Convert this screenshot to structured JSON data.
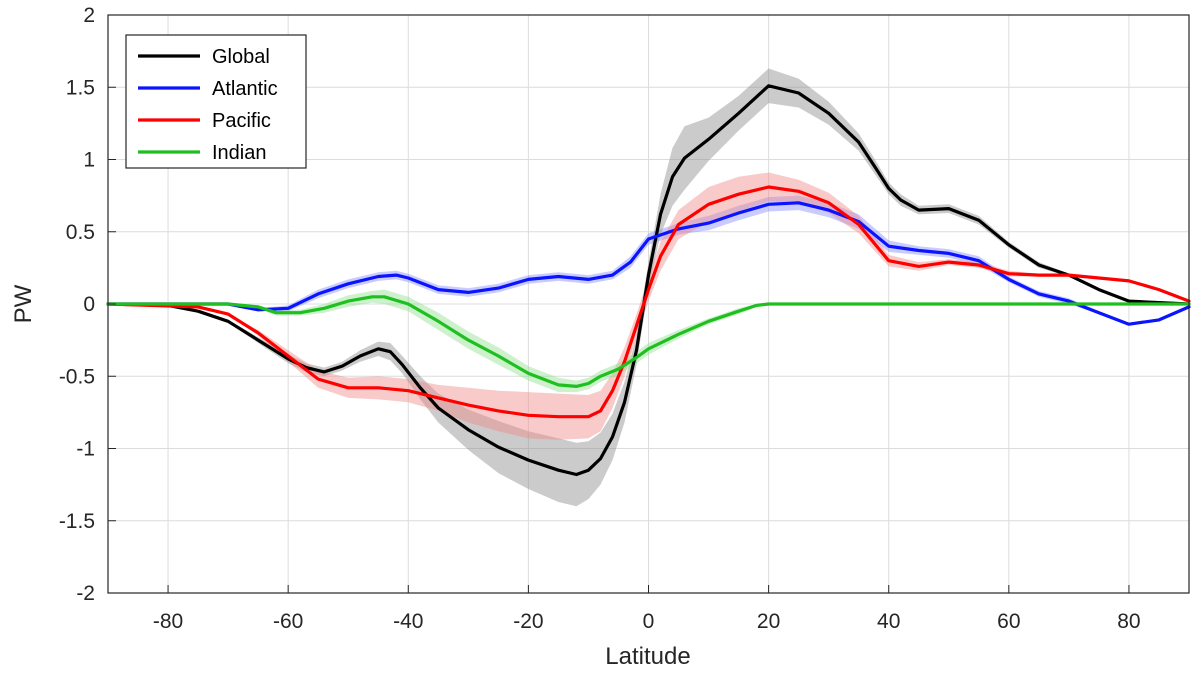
{
  "chart_data": {
    "type": "line",
    "xlabel": "Latitude",
    "ylabel": "PW",
    "xlim": [
      -90,
      90
    ],
    "ylim": [
      -2,
      2
    ],
    "xticks": [
      -80,
      -60,
      -40,
      -20,
      0,
      20,
      40,
      60,
      80
    ],
    "yticks": [
      -2,
      -1.5,
      -1,
      -0.5,
      0,
      0.5,
      1,
      1.5,
      2
    ],
    "xtick_labels": [
      "-80",
      "-60",
      "-40",
      "-20",
      "0",
      "20",
      "40",
      "60",
      "80"
    ],
    "ytick_labels": [
      "-2",
      "-1.5",
      "-1",
      "-0.5",
      "0",
      "0.5",
      "1",
      "1.5",
      "2"
    ],
    "grid": true,
    "legend_position": "top-left",
    "series": [
      {
        "name": "Global",
        "color": "#000000",
        "band_color": "#8c8c8c",
        "x": [
          -90,
          -80,
          -75,
          -70,
          -65,
          -60,
          -57,
          -54,
          -51,
          -48,
          -45,
          -43,
          -41,
          -38,
          -35,
          -30,
          -25,
          -20,
          -15,
          -12,
          -10,
          -8,
          -6,
          -4,
          -2,
          0,
          2,
          4,
          6,
          10,
          15,
          20,
          25,
          30,
          35,
          38,
          40,
          42,
          45,
          50,
          55,
          60,
          65,
          70,
          75,
          80,
          85,
          90
        ],
        "y": [
          0,
          -0.01,
          -0.05,
          -0.12,
          -0.25,
          -0.38,
          -0.44,
          -0.47,
          -0.43,
          -0.36,
          -0.31,
          -0.33,
          -0.42,
          -0.58,
          -0.72,
          -0.87,
          -0.99,
          -1.08,
          -1.15,
          -1.18,
          -1.15,
          -1.07,
          -0.92,
          -0.68,
          -0.32,
          0.2,
          0.62,
          0.88,
          1.01,
          1.14,
          1.32,
          1.51,
          1.46,
          1.32,
          1.12,
          0.93,
          0.8,
          0.72,
          0.65,
          0.66,
          0.58,
          0.41,
          0.27,
          0.2,
          0.1,
          0.02,
          0.01,
          0
        ],
        "band": [
          0,
          0,
          0,
          0.01,
          0.02,
          0.03,
          0.03,
          0.03,
          0.03,
          0.04,
          0.05,
          0.06,
          0.06,
          0.08,
          0.1,
          0.14,
          0.18,
          0.2,
          0.22,
          0.22,
          0.2,
          0.18,
          0.16,
          0.14,
          0.1,
          0.09,
          0.14,
          0.2,
          0.22,
          0.15,
          0.12,
          0.12,
          0.1,
          0.08,
          0.06,
          0.05,
          0.04,
          0.04,
          0.03,
          0.03,
          0.03,
          0.02,
          0.02,
          0.01,
          0.01,
          0,
          0,
          0
        ]
      },
      {
        "name": "Atlantic",
        "color": "#0a14ff",
        "band_color": "#8a8fff",
        "x": [
          -90,
          -75,
          -70,
          -65,
          -60,
          -55,
          -50,
          -45,
          -42,
          -40,
          -35,
          -30,
          -25,
          -20,
          -15,
          -10,
          -6,
          -3,
          0,
          5,
          10,
          15,
          20,
          25,
          30,
          35,
          40,
          45,
          50,
          55,
          60,
          65,
          70,
          75,
          80,
          85,
          90
        ],
        "y": [
          0,
          0,
          0,
          -0.04,
          -0.03,
          0.07,
          0.14,
          0.19,
          0.2,
          0.18,
          0.1,
          0.08,
          0.11,
          0.17,
          0.19,
          0.17,
          0.2,
          0.29,
          0.45,
          0.52,
          0.56,
          0.63,
          0.69,
          0.7,
          0.65,
          0.57,
          0.4,
          0.37,
          0.35,
          0.3,
          0.17,
          0.07,
          0.02,
          -0.06,
          -0.14,
          -0.11,
          -0.02
        ],
        "band": [
          0,
          0,
          0,
          0.01,
          0.02,
          0.03,
          0.03,
          0.03,
          0.03,
          0.03,
          0.03,
          0.03,
          0.03,
          0.03,
          0.03,
          0.03,
          0.03,
          0.04,
          0.04,
          0.04,
          0.05,
          0.05,
          0.05,
          0.05,
          0.05,
          0.05,
          0.04,
          0.03,
          0.03,
          0.03,
          0.02,
          0.02,
          0.02,
          0.01,
          0.01,
          0.01,
          0
        ]
      },
      {
        "name": "Pacific",
        "color": "#ff0000",
        "band_color": "#f08a8a",
        "x": [
          -90,
          -75,
          -70,
          -65,
          -60,
          -55,
          -50,
          -45,
          -40,
          -35,
          -30,
          -25,
          -20,
          -15,
          -10,
          -8,
          -6,
          -4,
          -2,
          0,
          2,
          5,
          10,
          15,
          20,
          25,
          30,
          35,
          40,
          45,
          50,
          55,
          60,
          65,
          70,
          75,
          80,
          85,
          90
        ],
        "y": [
          0,
          -0.02,
          -0.07,
          -0.2,
          -0.36,
          -0.52,
          -0.58,
          -0.58,
          -0.6,
          -0.65,
          -0.7,
          -0.74,
          -0.77,
          -0.78,
          -0.78,
          -0.74,
          -0.6,
          -0.4,
          -0.15,
          0.1,
          0.33,
          0.55,
          0.69,
          0.76,
          0.81,
          0.78,
          0.7,
          0.55,
          0.3,
          0.26,
          0.29,
          0.27,
          0.21,
          0.2,
          0.2,
          0.18,
          0.16,
          0.1,
          0.02
        ],
        "band": [
          0,
          0,
          0,
          0.02,
          0.04,
          0.06,
          0.07,
          0.08,
          0.08,
          0.09,
          0.12,
          0.14,
          0.16,
          0.16,
          0.15,
          0.14,
          0.12,
          0.1,
          0.08,
          0.08,
          0.1,
          0.1,
          0.12,
          0.12,
          0.1,
          0.08,
          0.07,
          0.06,
          0.04,
          0.03,
          0.02,
          0.02,
          0.02,
          0.01,
          0.01,
          0.01,
          0.01,
          0,
          0
        ]
      },
      {
        "name": "Indian",
        "color": "#1fbf1f",
        "band_color": "#8fe08f",
        "x": [
          -90,
          -70,
          -65,
          -62,
          -58,
          -54,
          -50,
          -46,
          -44,
          -40,
          -35,
          -30,
          -25,
          -20,
          -15,
          -12,
          -10,
          -8,
          -5,
          -2,
          0,
          5,
          10,
          15,
          18,
          20,
          25,
          90
        ],
        "y": [
          0,
          0,
          -0.02,
          -0.06,
          -0.06,
          -0.03,
          0.02,
          0.05,
          0.05,
          0.0,
          -0.12,
          -0.25,
          -0.36,
          -0.48,
          -0.56,
          -0.57,
          -0.55,
          -0.5,
          -0.45,
          -0.37,
          -0.31,
          -0.21,
          -0.12,
          -0.05,
          -0.01,
          0,
          0,
          0
        ],
        "band": [
          0,
          0,
          0.01,
          0.02,
          0.02,
          0.03,
          0.04,
          0.04,
          0.05,
          0.05,
          0.06,
          0.06,
          0.06,
          0.05,
          0.05,
          0.04,
          0.04,
          0.04,
          0.04,
          0.04,
          0.04,
          0.03,
          0.02,
          0.02,
          0.01,
          0,
          0,
          0
        ]
      }
    ]
  }
}
